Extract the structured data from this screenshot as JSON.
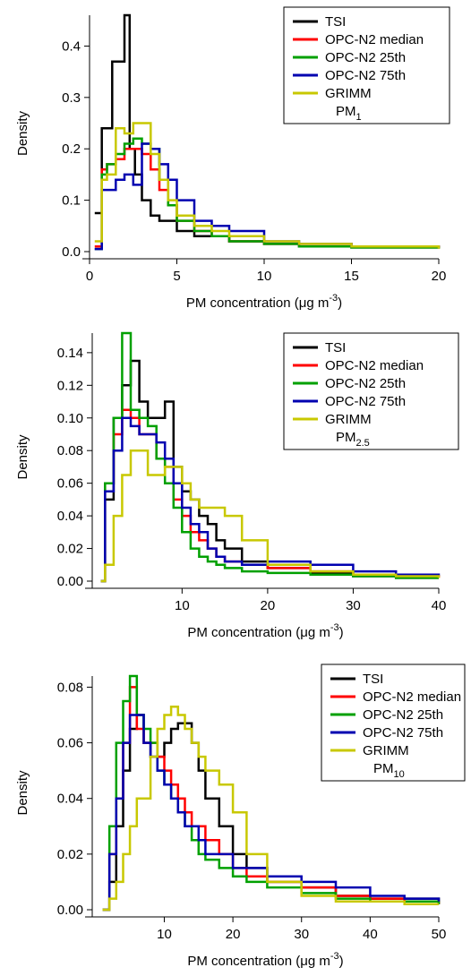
{
  "colors": {
    "TSI": "#000000",
    "OPC-N2 median": "#ff0000",
    "OPC-N2 25th": "#00a000",
    "OPC-N2 75th": "#0000b0",
    "GRIMM": "#c8c800"
  },
  "chart_data": [
    {
      "type": "line",
      "step": true,
      "xlabel": "PM concentration (μg m",
      "xlabel_sup": "-3",
      "xlabel_close": ")",
      "ylabel": "Density",
      "xlim": [
        0,
        20
      ],
      "ylim": [
        0,
        0.46
      ],
      "xticks": [
        0,
        5,
        10,
        15,
        20
      ],
      "yticks": [
        0.0,
        0.1,
        0.2,
        0.3,
        0.4
      ],
      "ytick_labels": [
        "0.0",
        "0.1",
        "0.2",
        "0.3",
        "0.4"
      ],
      "pm_label": "PM",
      "pm_sub": "1",
      "legend": [
        "TSI",
        "OPC-N2 median",
        "OPC-N2 25th",
        "OPC-N2 75th",
        "GRIMM"
      ],
      "series": [
        {
          "name": "TSI",
          "x": [
            0.3,
            0.7,
            1.0,
            1.3,
            1.6,
            2.0,
            2.3,
            2.6,
            3.0,
            3.5,
            4.0,
            5.0,
            6.0,
            8.0,
            10.0,
            12.0,
            15.0,
            20.0
          ],
          "y": [
            0.075,
            0.24,
            0.24,
            0.37,
            0.37,
            0.46,
            0.2,
            0.15,
            0.1,
            0.07,
            0.06,
            0.04,
            0.03,
            0.02,
            0.015,
            0.01,
            0.008,
            0.006
          ]
        },
        {
          "name": "OPC-N2 median",
          "x": [
            0.3,
            0.7,
            1.0,
            1.5,
            2.0,
            2.5,
            3.0,
            3.5,
            4.0,
            4.5,
            5.0,
            6.0,
            7.0,
            8.0,
            10.0,
            12.0,
            15.0,
            20.0
          ],
          "y": [
            0.01,
            0.16,
            0.17,
            0.18,
            0.2,
            0.2,
            0.19,
            0.16,
            0.12,
            0.09,
            0.06,
            0.04,
            0.03,
            0.02,
            0.015,
            0.015,
            0.01,
            0.008
          ]
        },
        {
          "name": "OPC-N2 25th",
          "x": [
            0.3,
            0.7,
            1.0,
            1.5,
            2.0,
            2.5,
            3.0,
            3.5,
            4.0,
            4.5,
            5.0,
            6.0,
            7.0,
            8.0,
            10.0,
            12.0,
            15.0,
            20.0
          ],
          "y": [
            0.005,
            0.15,
            0.17,
            0.19,
            0.21,
            0.22,
            0.21,
            0.2,
            0.14,
            0.09,
            0.06,
            0.04,
            0.03,
            0.02,
            0.015,
            0.01,
            0.008,
            0.006
          ]
        },
        {
          "name": "OPC-N2 75th",
          "x": [
            0.3,
            0.7,
            1.0,
            1.5,
            2.0,
            2.5,
            3.0,
            3.5,
            4.0,
            4.5,
            5.0,
            6.0,
            7.0,
            8.0,
            10.0,
            12.0,
            15.0,
            20.0
          ],
          "y": [
            0.005,
            0.12,
            0.12,
            0.14,
            0.15,
            0.13,
            0.21,
            0.2,
            0.17,
            0.14,
            0.1,
            0.06,
            0.05,
            0.04,
            0.02,
            0.015,
            0.01,
            0.008
          ]
        },
        {
          "name": "GRIMM",
          "x": [
            0.3,
            0.7,
            1.0,
            1.5,
            2.0,
            2.5,
            3.0,
            3.5,
            4.0,
            4.5,
            5.0,
            6.0,
            7.0,
            8.0,
            10.0,
            12.0,
            15.0,
            20.0
          ],
          "y": [
            0.02,
            0.14,
            0.15,
            0.24,
            0.23,
            0.25,
            0.25,
            0.19,
            0.14,
            0.1,
            0.07,
            0.05,
            0.04,
            0.03,
            0.02,
            0.015,
            0.01,
            0.006
          ]
        }
      ]
    },
    {
      "type": "line",
      "step": true,
      "xlabel": "PM concentration (μg m",
      "xlabel_sup": "-3",
      "xlabel_close": ")",
      "ylabel": "Density",
      "xlim": [
        -0.5,
        40
      ],
      "ylim": [
        0,
        0.152
      ],
      "xticks": [
        10,
        20,
        30,
        40
      ],
      "yticks": [
        0.0,
        0.02,
        0.04,
        0.06,
        0.08,
        0.1,
        0.12,
        0.14
      ],
      "ytick_labels": [
        "0.00",
        "0.02",
        "0.04",
        "0.06",
        "0.08",
        "0.10",
        "0.12",
        "0.14"
      ],
      "pm_label": "PM",
      "pm_sub": "2.5",
      "legend": [
        "TSI",
        "OPC-N2 median",
        "OPC-N2 25th",
        "OPC-N2 75th",
        "GRIMM"
      ],
      "series": [
        {
          "name": "TSI",
          "x": [
            0.5,
            1,
            2,
            3,
            4,
            5,
            6,
            7,
            8,
            9,
            10,
            11,
            12,
            13,
            14,
            15,
            17,
            20,
            25,
            30,
            35,
            40
          ],
          "y": [
            0.0,
            0.05,
            0.1,
            0.12,
            0.135,
            0.11,
            0.1,
            0.1,
            0.11,
            0.07,
            0.055,
            0.05,
            0.04,
            0.035,
            0.025,
            0.02,
            0.012,
            0.008,
            0.005,
            0.003,
            0.002,
            0.002
          ]
        },
        {
          "name": "OPC-N2 median",
          "x": [
            0.5,
            1,
            2,
            3,
            4,
            5,
            6,
            7,
            8,
            9,
            10,
            11,
            12,
            13,
            14,
            15,
            17,
            20,
            25,
            30,
            35,
            40
          ],
          "y": [
            0.0,
            0.06,
            0.09,
            0.105,
            0.1,
            0.09,
            0.09,
            0.075,
            0.07,
            0.05,
            0.04,
            0.03,
            0.025,
            0.02,
            0.015,
            0.012,
            0.01,
            0.008,
            0.006,
            0.004,
            0.003,
            0.002
          ]
        },
        {
          "name": "OPC-N2 25th",
          "x": [
            0.5,
            1,
            2,
            3,
            4,
            5,
            6,
            7,
            8,
            9,
            10,
            11,
            12,
            13,
            14,
            15,
            17,
            20,
            25,
            30,
            35,
            40
          ],
          "y": [
            0.0,
            0.06,
            0.1,
            0.152,
            0.105,
            0.1,
            0.095,
            0.075,
            0.06,
            0.045,
            0.03,
            0.02,
            0.015,
            0.012,
            0.01,
            0.008,
            0.006,
            0.005,
            0.004,
            0.003,
            0.002,
            0.002
          ]
        },
        {
          "name": "OPC-N2 75th",
          "x": [
            0.5,
            1,
            2,
            3,
            4,
            5,
            6,
            7,
            8,
            9,
            10,
            11,
            12,
            13,
            14,
            15,
            17,
            20,
            25,
            30,
            35,
            40
          ],
          "y": [
            0.0,
            0.055,
            0.08,
            0.1,
            0.095,
            0.09,
            0.09,
            0.085,
            0.075,
            0.06,
            0.045,
            0.035,
            0.03,
            0.02,
            0.015,
            0.012,
            0.01,
            0.012,
            0.01,
            0.006,
            0.004,
            0.003
          ]
        },
        {
          "name": "GRIMM",
          "x": [
            0.5,
            1,
            2,
            3,
            4,
            5,
            6,
            7,
            8,
            9,
            10,
            11,
            12,
            13,
            14,
            15,
            17,
            20,
            25,
            30,
            35,
            40
          ],
          "y": [
            0.0,
            0.01,
            0.04,
            0.065,
            0.08,
            0.08,
            0.065,
            0.065,
            0.07,
            0.07,
            0.06,
            0.05,
            0.045,
            0.045,
            0.045,
            0.04,
            0.025,
            0.01,
            0.006,
            0.004,
            0.003,
            0.002
          ]
        }
      ]
    },
    {
      "type": "line",
      "step": true,
      "xlabel": "PM concentration (μg m",
      "xlabel_sup": "-3",
      "xlabel_close": ")",
      "ylabel": "Density",
      "xlim": [
        -0.5,
        50
      ],
      "ylim": [
        0,
        0.084
      ],
      "xticks": [
        10,
        20,
        30,
        40,
        50
      ],
      "yticks": [
        0.0,
        0.02,
        0.04,
        0.06,
        0.08
      ],
      "ytick_labels": [
        "0.00",
        "0.02",
        "0.04",
        "0.06",
        "0.08"
      ],
      "pm_label": "PM",
      "pm_sub": "10",
      "legend": [
        "TSI",
        "OPC-N2 median",
        "OPC-N2 25th",
        "OPC-N2 75th",
        "GRIMM"
      ],
      "series": [
        {
          "name": "TSI",
          "x": [
            1,
            2,
            3,
            4,
            5,
            6,
            7,
            8,
            9,
            10,
            11,
            12,
            13,
            14,
            15,
            16,
            18,
            20,
            22,
            25,
            30,
            35,
            40,
            45,
            50
          ],
          "y": [
            0.0,
            0.01,
            0.03,
            0.05,
            0.065,
            0.07,
            0.06,
            0.055,
            0.055,
            0.06,
            0.065,
            0.067,
            0.067,
            0.06,
            0.05,
            0.04,
            0.03,
            0.02,
            0.015,
            0.01,
            0.008,
            0.005,
            0.004,
            0.004,
            0.002
          ]
        },
        {
          "name": "OPC-N2 median",
          "x": [
            1,
            2,
            3,
            4,
            5,
            6,
            7,
            8,
            9,
            10,
            11,
            12,
            13,
            14,
            15,
            16,
            18,
            20,
            22,
            25,
            30,
            35,
            40,
            45,
            50
          ],
          "y": [
            0.0,
            0.02,
            0.04,
            0.06,
            0.08,
            0.065,
            0.06,
            0.06,
            0.055,
            0.05,
            0.045,
            0.04,
            0.035,
            0.03,
            0.03,
            0.025,
            0.02,
            0.015,
            0.012,
            0.01,
            0.008,
            0.005,
            0.004,
            0.003,
            0.002
          ]
        },
        {
          "name": "OPC-N2 25th",
          "x": [
            1,
            2,
            3,
            4,
            5,
            6,
            7,
            8,
            9,
            10,
            11,
            12,
            13,
            14,
            15,
            16,
            18,
            20,
            22,
            25,
            30,
            35,
            40,
            45,
            50
          ],
          "y": [
            0.0,
            0.03,
            0.06,
            0.075,
            0.084,
            0.07,
            0.065,
            0.06,
            0.05,
            0.045,
            0.04,
            0.035,
            0.03,
            0.025,
            0.02,
            0.018,
            0.015,
            0.012,
            0.01,
            0.008,
            0.006,
            0.004,
            0.003,
            0.003,
            0.002
          ]
        },
        {
          "name": "OPC-N2 75th",
          "x": [
            1,
            2,
            3,
            4,
            5,
            6,
            7,
            8,
            9,
            10,
            11,
            12,
            13,
            14,
            15,
            16,
            18,
            20,
            22,
            25,
            30,
            35,
            40,
            45,
            50
          ],
          "y": [
            0.0,
            0.02,
            0.04,
            0.06,
            0.07,
            0.07,
            0.06,
            0.055,
            0.05,
            0.045,
            0.04,
            0.035,
            0.03,
            0.03,
            0.025,
            0.02,
            0.02,
            0.015,
            0.015,
            0.012,
            0.01,
            0.008,
            0.005,
            0.004,
            0.003
          ]
        },
        {
          "name": "GRIMM",
          "x": [
            1,
            2,
            3,
            4,
            5,
            6,
            7,
            8,
            9,
            10,
            11,
            12,
            13,
            14,
            15,
            16,
            18,
            20,
            22,
            25,
            30,
            35,
            40,
            45,
            50
          ],
          "y": [
            0.0,
            0.004,
            0.01,
            0.02,
            0.03,
            0.04,
            0.04,
            0.055,
            0.065,
            0.07,
            0.073,
            0.07,
            0.065,
            0.06,
            0.055,
            0.05,
            0.045,
            0.035,
            0.02,
            0.01,
            0.005,
            0.003,
            0.003,
            0.002,
            0.002
          ]
        }
      ]
    }
  ]
}
